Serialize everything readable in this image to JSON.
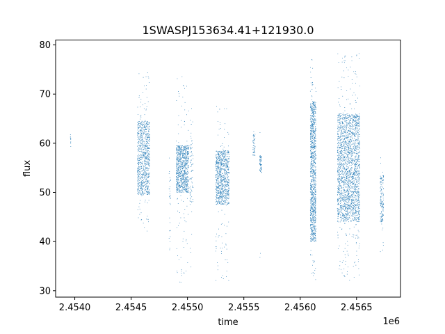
{
  "chart_data": {
    "type": "scatter",
    "title": "1SWASPJ153634.41+121930.0",
    "xlabel": "time",
    "ylabel": "flux",
    "x_offset_label": "1e6",
    "xlim": [
      2453830,
      2456890
    ],
    "ylim": [
      28.7,
      81.0
    ],
    "x_ticks": [
      2.454,
      2.4545,
      2.455,
      2.4555,
      2.456,
      2.4565
    ],
    "x_tick_labels": [
      "2.4540",
      "2.4545",
      "2.4550",
      "2.4555",
      "2.4560",
      "2.4565"
    ],
    "y_ticks": [
      30,
      40,
      50,
      60,
      70,
      80
    ],
    "y_tick_labels": [
      "30",
      "40",
      "50",
      "60",
      "70",
      "80"
    ],
    "grid": false,
    "marker_color": "#1f77b4",
    "clusters": [
      {
        "x": [
          2453960,
          2453965
        ],
        "y": [
          58.5,
          78.5
        ],
        "core": [
          59,
          62
        ],
        "n": 10
      },
      {
        "x": [
          2454555,
          2454665
        ],
        "y": [
          42,
          74.5
        ],
        "core": [
          49.5,
          64.5
        ],
        "n": 900
      },
      {
        "x": [
          2454835,
          2454850
        ],
        "y": [
          38,
          57.5
        ],
        "core": [
          38.5,
          57
        ],
        "n": 30
      },
      {
        "x": [
          2454900,
          2455010
        ],
        "y": [
          31.5,
          75
        ],
        "core": [
          50,
          59.5
        ],
        "n": 900
      },
      {
        "x": [
          2455020,
          2455050
        ],
        "y": [
          33,
          67.5
        ],
        "core": [
          48,
          61.5
        ],
        "n": 80
      },
      {
        "x": [
          2455250,
          2455370
        ],
        "y": [
          31,
          67.5
        ],
        "core": [
          47.5,
          58.5
        ],
        "n": 900
      },
      {
        "x": [
          2455580,
          2455600
        ],
        "y": [
          57.5,
          64.5
        ],
        "core": [
          57.5,
          62
        ],
        "n": 50
      },
      {
        "x": [
          2455640,
          2455660
        ],
        "y": [
          31,
          64
        ],
        "core": [
          54,
          57.5
        ],
        "n": 60
      },
      {
        "x": [
          2456090,
          2456140
        ],
        "y": [
          32,
          78.5
        ],
        "core": [
          40,
          68.5
        ],
        "n": 1100
      },
      {
        "x": [
          2456330,
          2456530
        ],
        "y": [
          32,
          78.5
        ],
        "core": [
          44,
          66
        ],
        "n": 2200
      },
      {
        "x": [
          2456710,
          2456740
        ],
        "y": [
          37,
          57.5
        ],
        "core": [
          44,
          53.5
        ],
        "n": 150
      }
    ]
  }
}
